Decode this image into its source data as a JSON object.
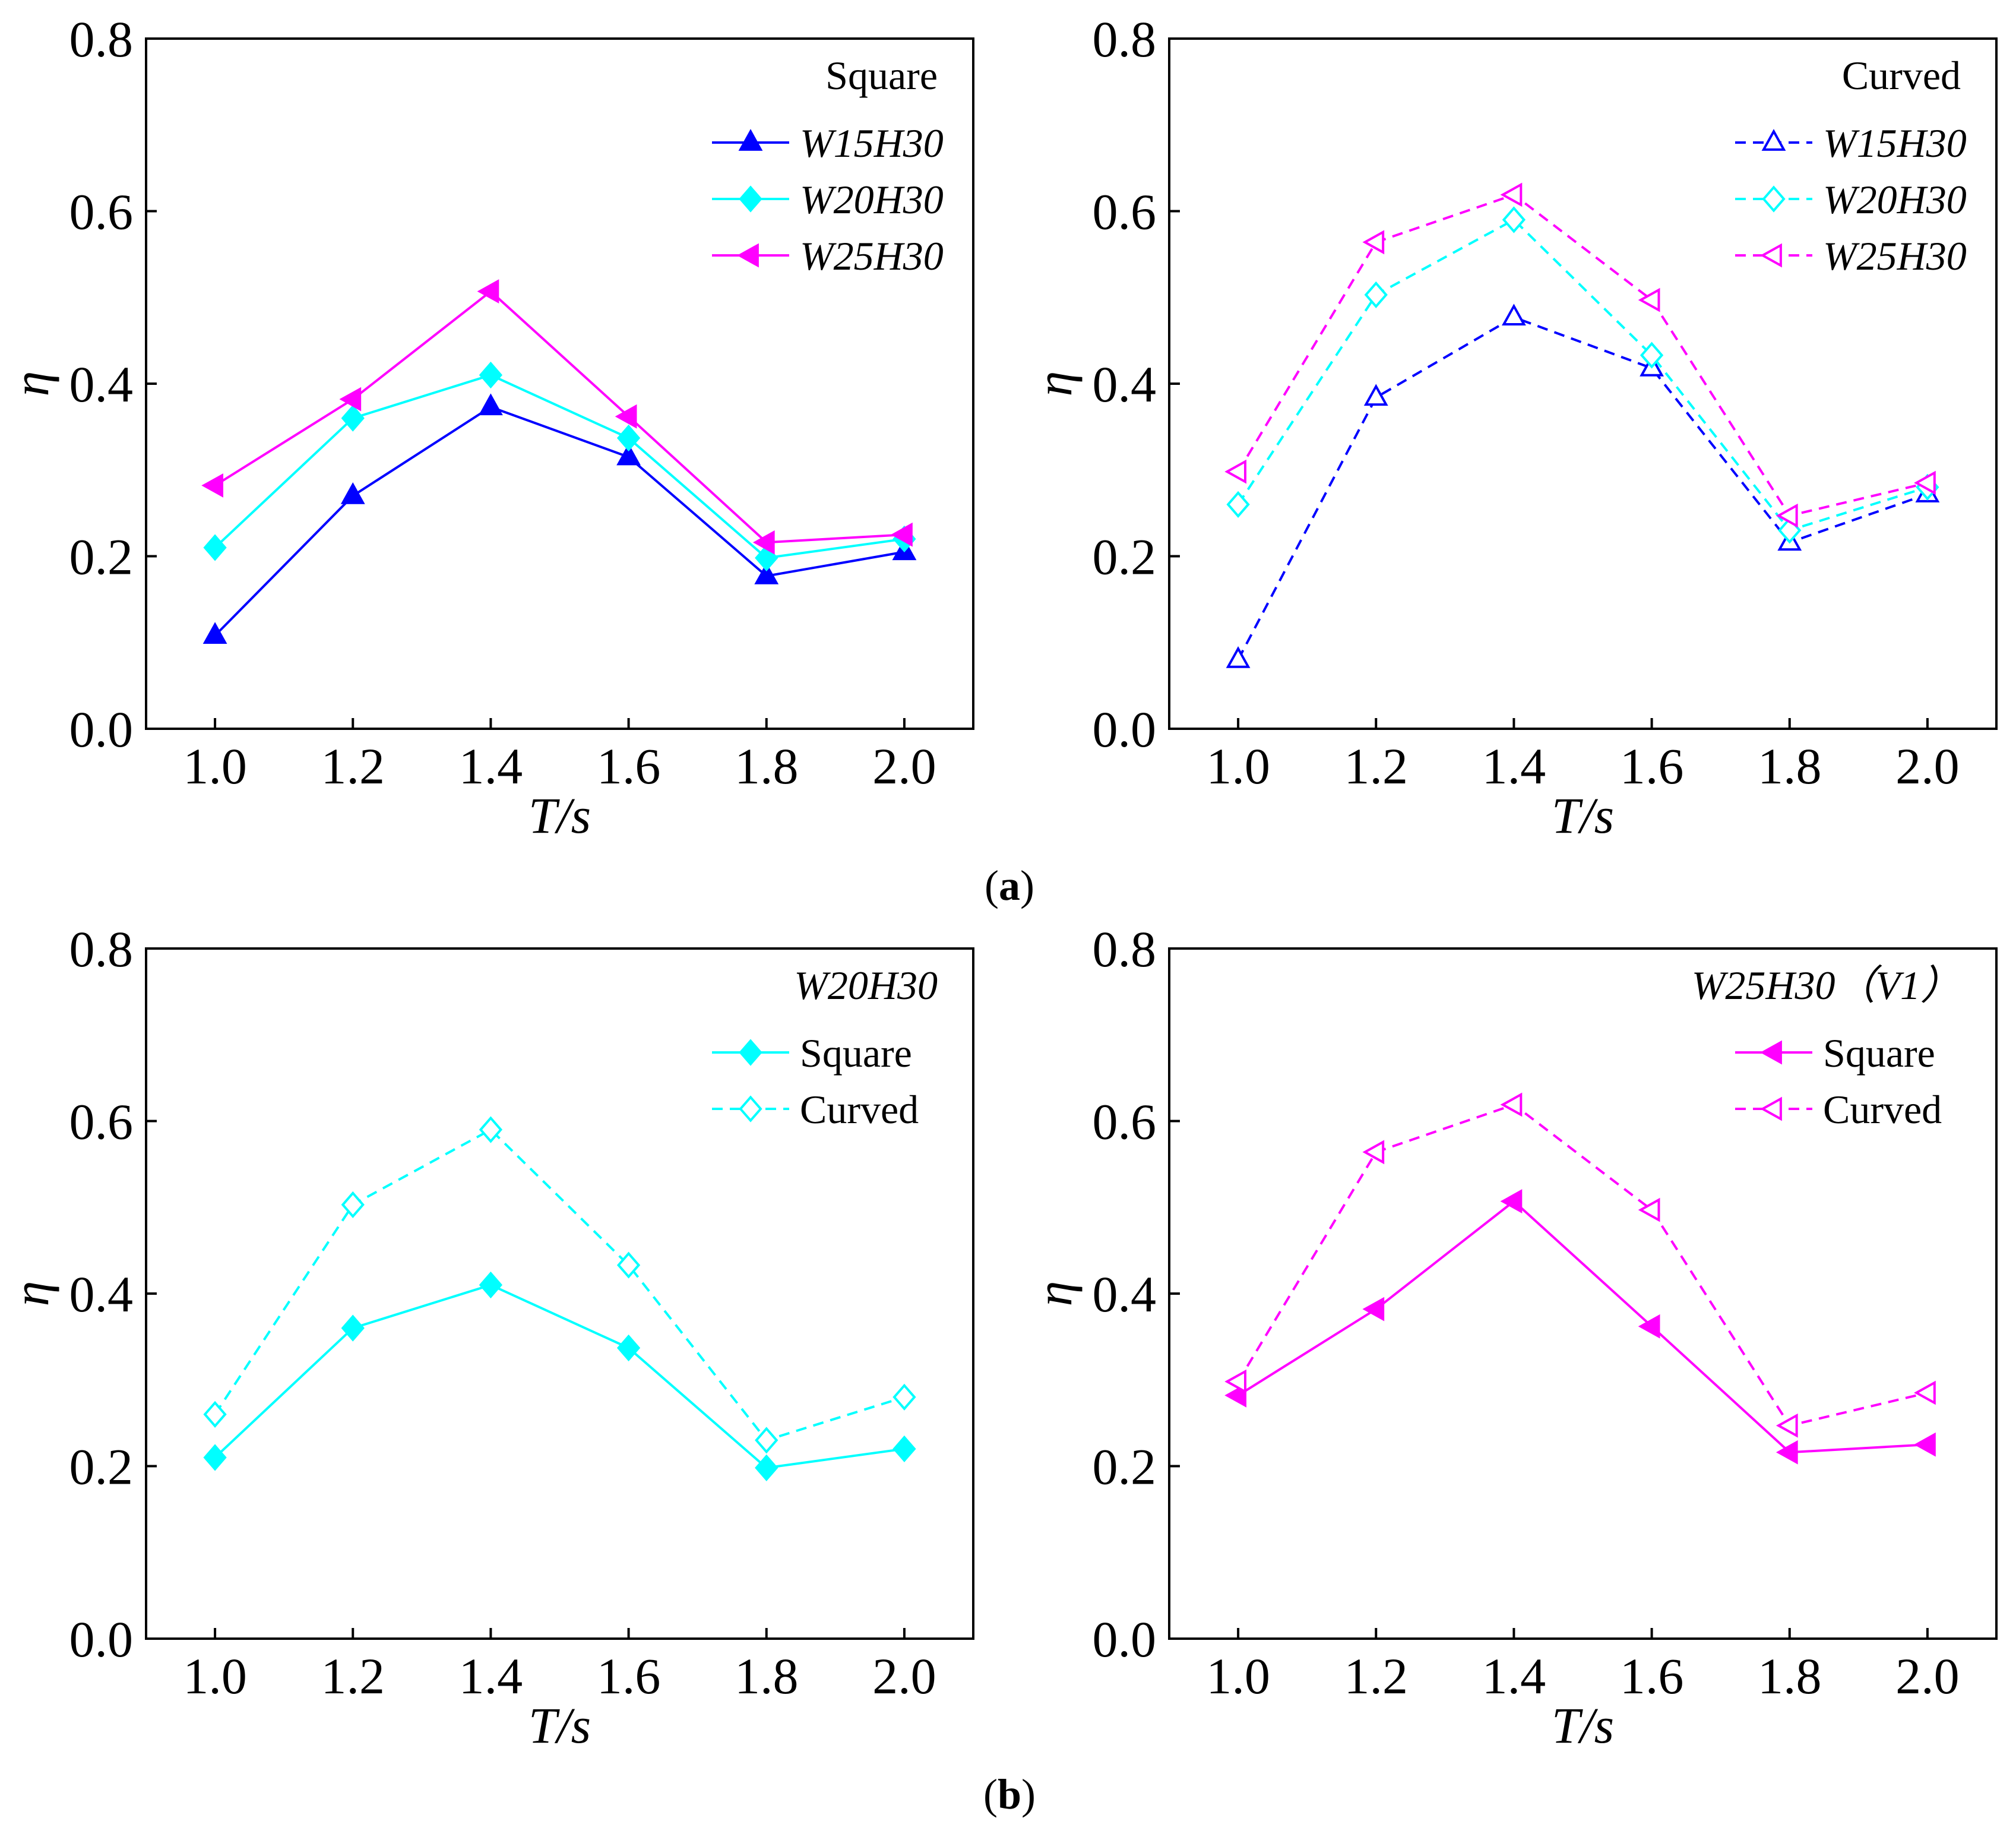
{
  "chart_data": [
    {
      "type": "line",
      "panel": "a-left",
      "xlabel": "T/s",
      "ylabel": "η",
      "xlim": [
        0.9,
        2.1
      ],
      "ylim": [
        0,
        0.8
      ],
      "xticks": [
        "1.0",
        "1.2",
        "1.4",
        "1.6",
        "1.8",
        "2.0"
      ],
      "yticks": [
        "0.0",
        "0.2",
        "0.4",
        "0.6",
        "0.8"
      ],
      "x": [
        1.0,
        1.2,
        1.4,
        1.6,
        1.8,
        2.0
      ],
      "legend_title": "Square",
      "series": [
        {
          "name": "W15H30",
          "color": "#0000ff",
          "marker": "triangle-up",
          "filled": true,
          "dashed": false,
          "values": [
            0.108,
            0.27,
            0.373,
            0.315,
            0.177,
            0.205
          ]
        },
        {
          "name": "W20H30",
          "color": "#00ffff",
          "marker": "diamond",
          "filled": true,
          "dashed": false,
          "values": [
            0.21,
            0.36,
            0.41,
            0.337,
            0.198,
            0.22
          ]
        },
        {
          "name": "W25H30",
          "color": "#ff00ff",
          "marker": "triangle-left",
          "filled": true,
          "dashed": false,
          "values": [
            0.282,
            0.382,
            0.507,
            0.362,
            0.216,
            0.225
          ]
        }
      ]
    },
    {
      "type": "line",
      "panel": "a-right",
      "xlabel": "T/s",
      "ylabel": "η",
      "xlim": [
        0.9,
        2.1
      ],
      "ylim": [
        0,
        0.8
      ],
      "xticks": [
        "1.0",
        "1.2",
        "1.4",
        "1.6",
        "1.8",
        "2.0"
      ],
      "yticks": [
        "0.0",
        "0.2",
        "0.4",
        "0.6",
        "0.8"
      ],
      "x": [
        1.0,
        1.2,
        1.4,
        1.6,
        1.8,
        2.0
      ],
      "legend_title": "Curved",
      "series": [
        {
          "name": "W15H30",
          "color": "#0000ff",
          "marker": "triangle-up",
          "filled": false,
          "dashed": true,
          "values": [
            0.08,
            0.384,
            0.477,
            0.418,
            0.216,
            0.272
          ]
        },
        {
          "name": "W20H30",
          "color": "#00ffff",
          "marker": "diamond",
          "filled": false,
          "dashed": true,
          "values": [
            0.26,
            0.503,
            0.59,
            0.433,
            0.23,
            0.28
          ]
        },
        {
          "name": "W25H30",
          "color": "#ff00ff",
          "marker": "triangle-left",
          "filled": false,
          "dashed": true,
          "values": [
            0.298,
            0.564,
            0.619,
            0.497,
            0.247,
            0.285
          ]
        }
      ]
    },
    {
      "type": "line",
      "panel": "b-left",
      "xlabel": "T/s",
      "ylabel": "η",
      "xlim": [
        0.9,
        2.1
      ],
      "ylim": [
        0,
        0.8
      ],
      "xticks": [
        "1.0",
        "1.2",
        "1.4",
        "1.6",
        "1.8",
        "2.0"
      ],
      "yticks": [
        "0.0",
        "0.2",
        "0.4",
        "0.6",
        "0.8"
      ],
      "x": [
        1.0,
        1.2,
        1.4,
        1.6,
        1.8,
        2.0
      ],
      "legend_title": "W20H30",
      "series": [
        {
          "name": "Square",
          "color": "#00ffff",
          "marker": "diamond",
          "filled": true,
          "dashed": false,
          "values": [
            0.21,
            0.36,
            0.41,
            0.337,
            0.198,
            0.22
          ]
        },
        {
          "name": "Curved",
          "color": "#00ffff",
          "marker": "diamond",
          "filled": false,
          "dashed": true,
          "values": [
            0.26,
            0.503,
            0.59,
            0.433,
            0.23,
            0.28
          ]
        }
      ]
    },
    {
      "type": "line",
      "panel": "b-right",
      "xlabel": "T/s",
      "ylabel": "η",
      "xlim": [
        0.9,
        2.1
      ],
      "ylim": [
        0,
        0.8
      ],
      "xticks": [
        "1.0",
        "1.2",
        "1.4",
        "1.6",
        "1.8",
        "2.0"
      ],
      "yticks": [
        "0.0",
        "0.2",
        "0.4",
        "0.6",
        "0.8"
      ],
      "x": [
        1.0,
        1.2,
        1.4,
        1.6,
        1.8,
        2.0
      ],
      "legend_title": "W25H30（V1）",
      "series": [
        {
          "name": "Square",
          "color": "#ff00ff",
          "marker": "triangle-left",
          "filled": true,
          "dashed": false,
          "values": [
            0.282,
            0.382,
            0.507,
            0.362,
            0.216,
            0.225
          ]
        },
        {
          "name": "Curved",
          "color": "#ff00ff",
          "marker": "triangle-left",
          "filled": false,
          "dashed": true,
          "values": [
            0.298,
            0.564,
            0.619,
            0.497,
            0.247,
            0.285
          ]
        }
      ]
    }
  ],
  "captions": {
    "a": "a",
    "b": "b"
  }
}
